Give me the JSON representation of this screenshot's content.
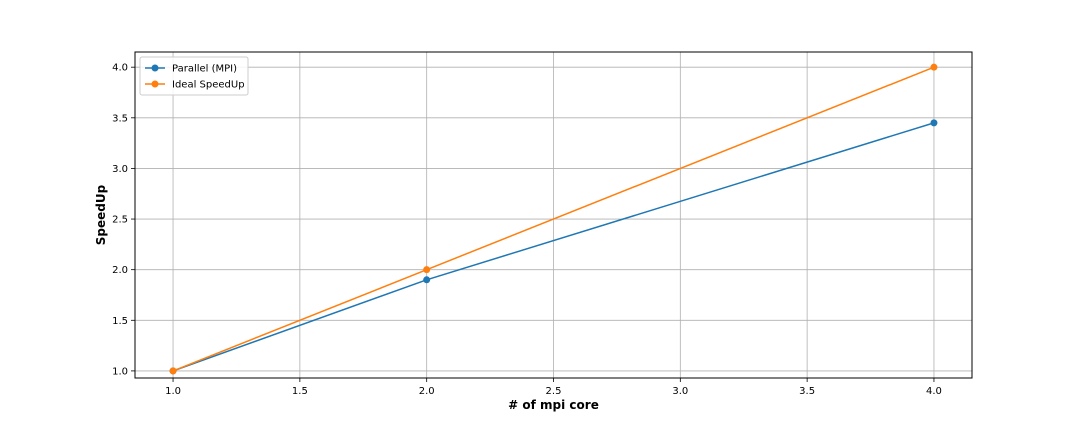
{
  "chart_data": {
    "type": "line",
    "title": "",
    "xlabel": "# of mpi core",
    "ylabel": "SpeedUp",
    "xlim": [
      0.85,
      4.15
    ],
    "ylim": [
      0.93,
      4.15
    ],
    "xticks": [
      "1.0",
      "1.5",
      "2.0",
      "2.5",
      "3.0",
      "3.5",
      "4.0"
    ],
    "yticks": [
      "1.0",
      "1.5",
      "2.0",
      "2.5",
      "3.0",
      "3.5",
      "4.0"
    ],
    "grid": true,
    "legend_position": "top-left",
    "series": [
      {
        "name": "Parallel (MPI)",
        "color": "#1f77b4",
        "marker": "circle",
        "x": [
          1,
          2,
          4
        ],
        "y": [
          1.0,
          1.9,
          3.45
        ]
      },
      {
        "name": "Ideal SpeedUp",
        "color": "#ff7f0e",
        "marker": "circle",
        "x": [
          1,
          2,
          4
        ],
        "y": [
          1.0,
          2.0,
          4.0
        ]
      }
    ]
  }
}
